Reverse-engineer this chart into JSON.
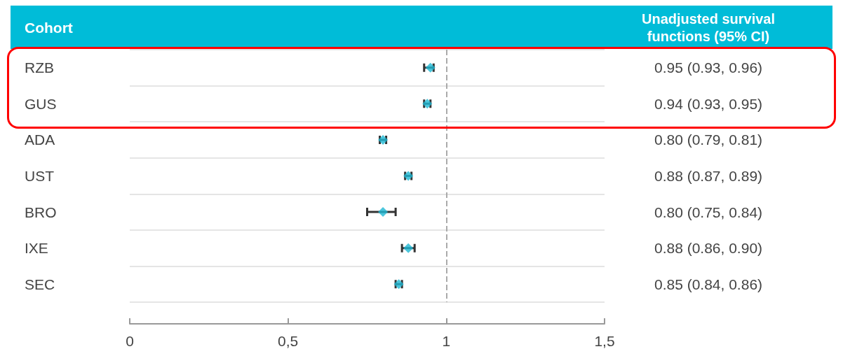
{
  "chart_data": {
    "type": "scatter",
    "title": "Unadjusted survival functions (95% CI)",
    "ylabel": "Cohort",
    "orientation": "horizontal",
    "categories": [
      "RZB",
      "GUS",
      "ADA",
      "UST",
      "BRO",
      "IXE",
      "SEC"
    ],
    "values": [
      0.95,
      0.94,
      0.8,
      0.88,
      0.8,
      0.88,
      0.85
    ],
    "errors": [
      [
        0.93,
        0.96
      ],
      [
        0.93,
        0.95
      ],
      [
        0.79,
        0.81
      ],
      [
        0.87,
        0.89
      ],
      [
        0.75,
        0.84
      ],
      [
        0.86,
        0.9
      ],
      [
        0.84,
        0.86
      ]
    ],
    "value_labels": [
      "0.95 (0.93, 0.96)",
      "0.94 (0.93, 0.95)",
      "0.80 (0.79, 0.81)",
      "0.88 (0.87, 0.89)",
      "0.80 (0.75, 0.84)",
      "0.88 (0.86, 0.90)",
      "0.85 (0.84, 0.86)"
    ],
    "color": "#1fb8d3",
    "marker": "diamond",
    "xlim": [
      0,
      1.5
    ],
    "xticks": [
      0,
      {
        "value": 0.5,
        "label": "0,5"
      },
      1,
      {
        "value": 1.5,
        "label": "1,5"
      }
    ],
    "ref_lines": [
      {
        "axis": "x",
        "value": 1,
        "color": "#aaaaaa",
        "line_style": "dashed"
      }
    ],
    "grid": "y"
  }
}
